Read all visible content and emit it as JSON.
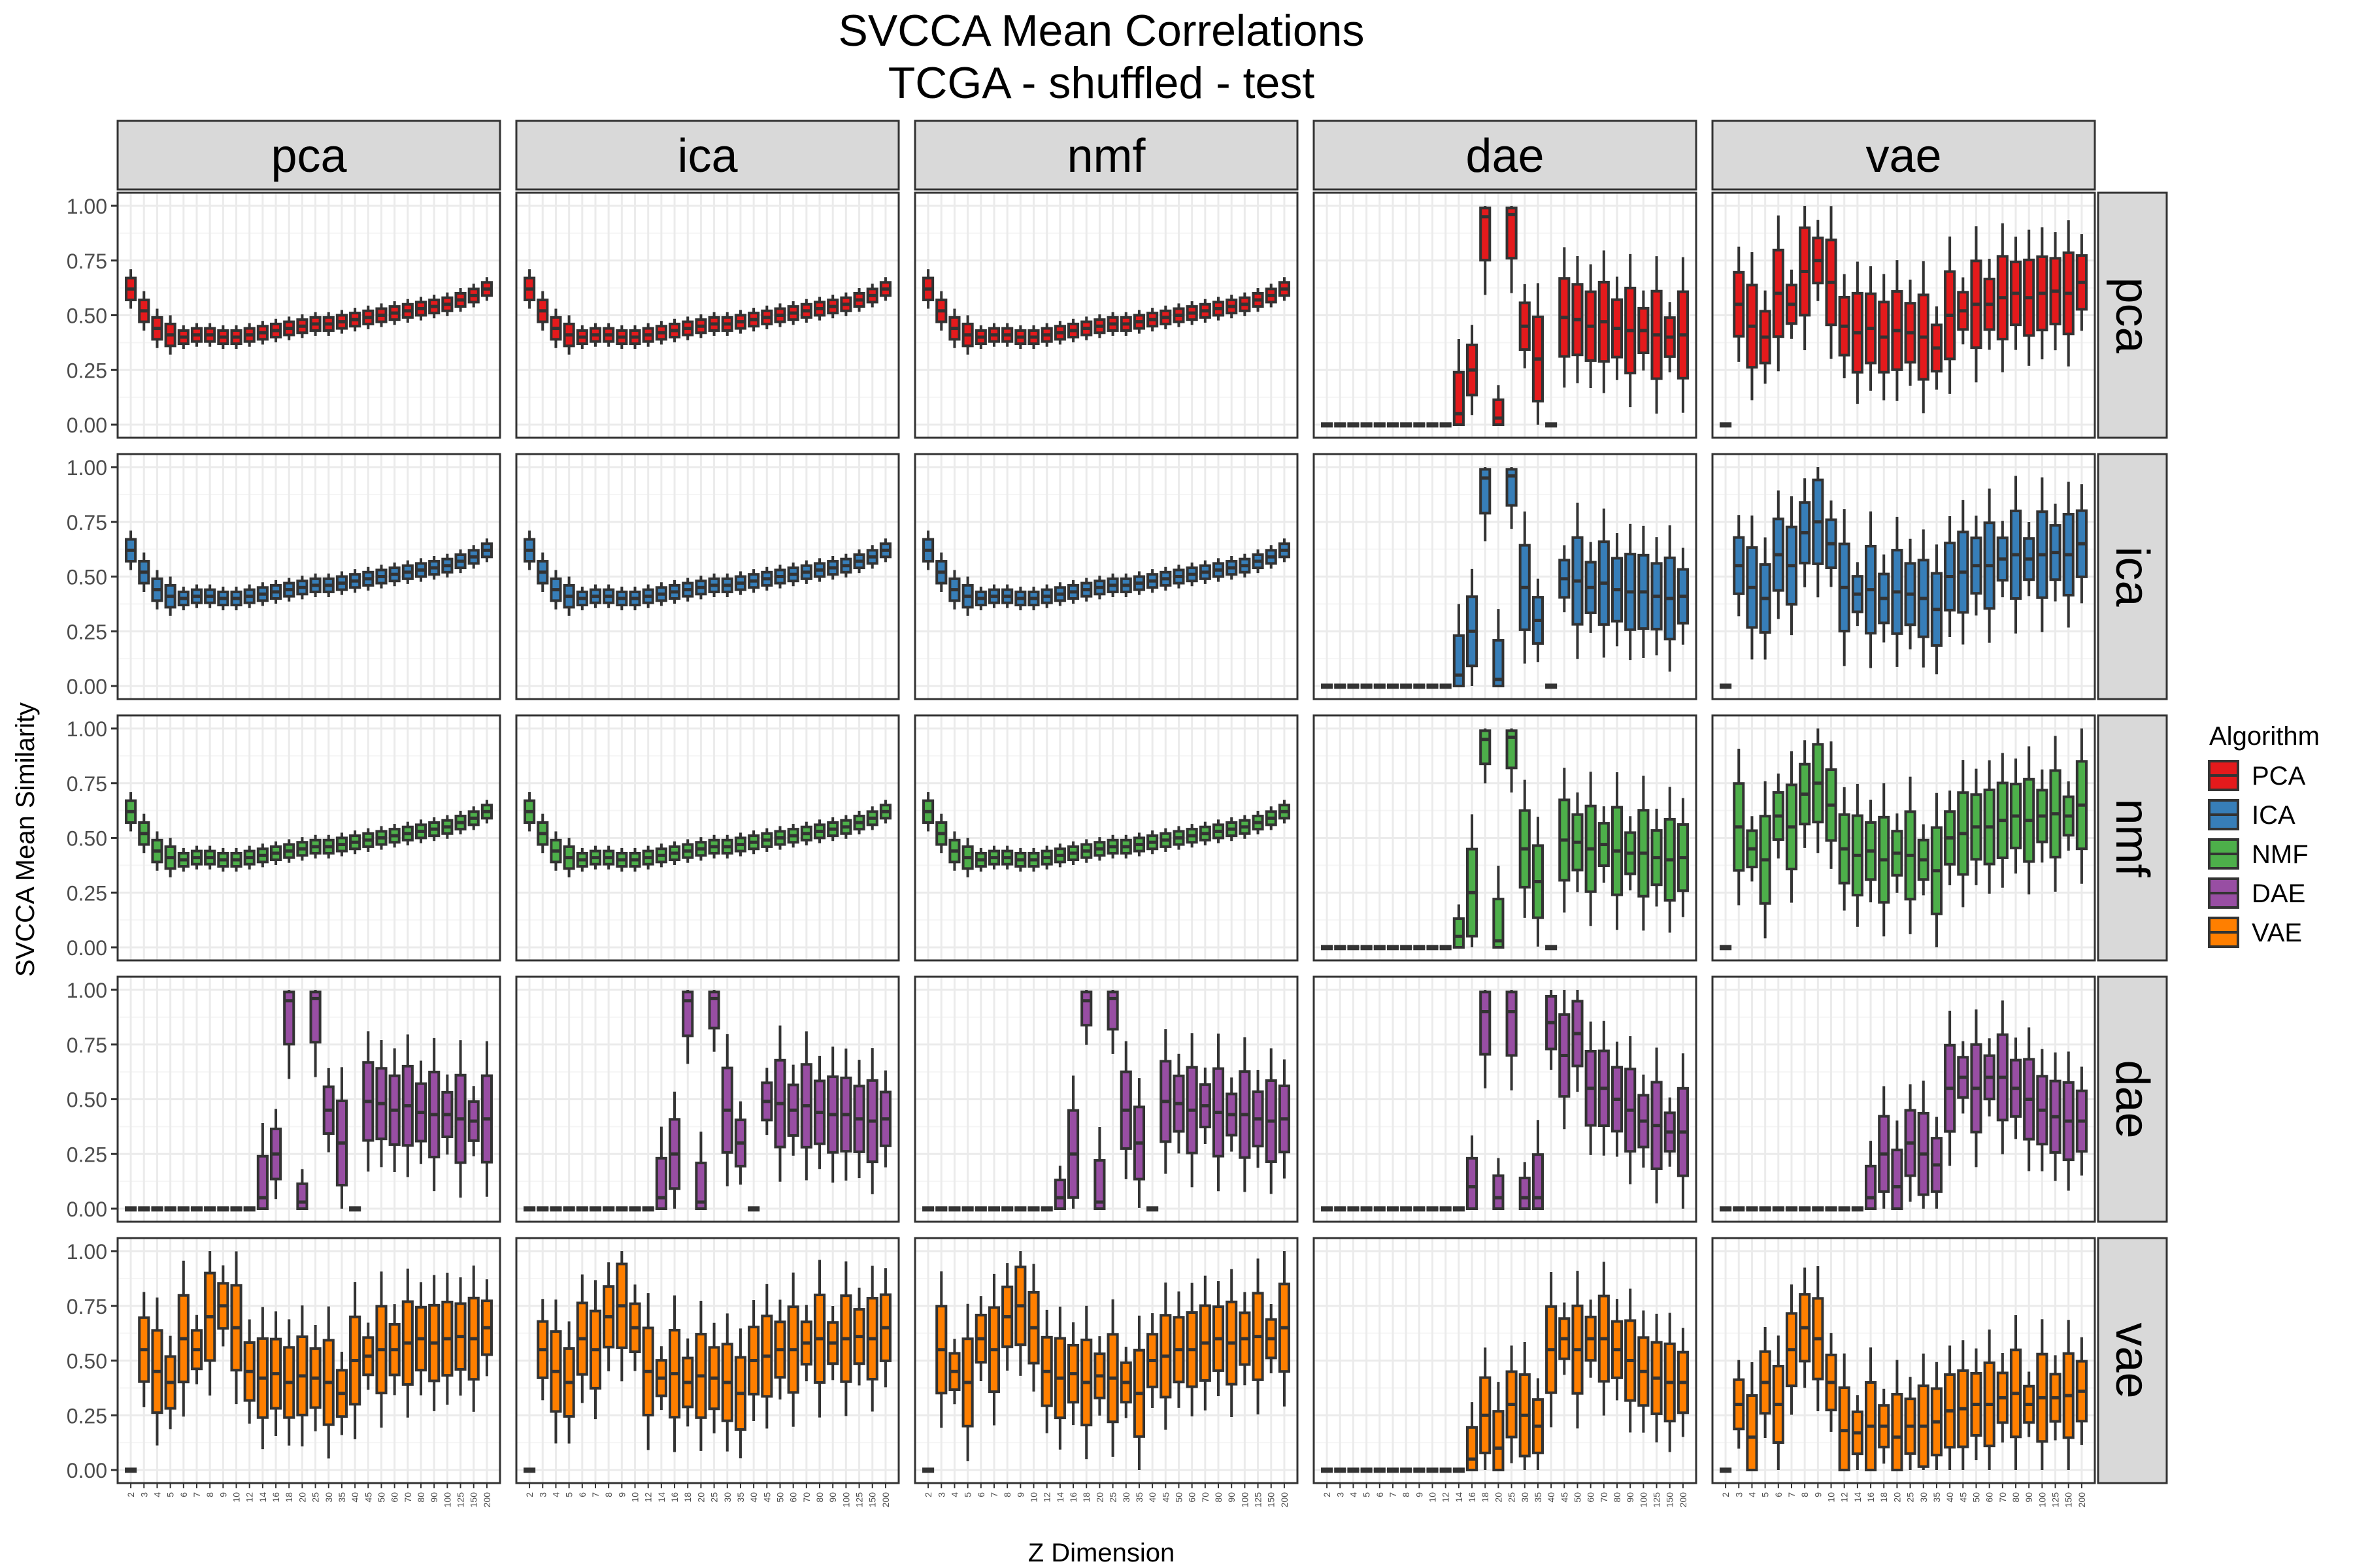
{
  "chart_data": {
    "type": "boxplot",
    "title": "SVCCA Mean Correlations",
    "subtitle": "TCGA - shuffled - test",
    "xlabel": "Z Dimension",
    "ylabel": "SVCCA Mean Similarity",
    "ylim": [
      0,
      1
    ],
    "y_ticks": [
      "0.00",
      "0.25",
      "0.50",
      "0.75",
      "1.00"
    ],
    "x_categories": [
      "2",
      "3",
      "4",
      "5",
      "6",
      "7",
      "8",
      "9",
      "10",
      "12",
      "14",
      "16",
      "18",
      "20",
      "25",
      "30",
      "35",
      "40",
      "45",
      "50",
      "60",
      "70",
      "80",
      "90",
      "100",
      "125",
      "150",
      "200"
    ],
    "column_facets": [
      "pca",
      "ica",
      "nmf",
      "dae",
      "vae"
    ],
    "row_facets": [
      "pca",
      "ica",
      "nmf",
      "dae",
      "vae"
    ],
    "legend": {
      "title": "Algorithm",
      "position": "right",
      "items": [
        {
          "label": "PCA",
          "color": "#e41a1c"
        },
        {
          "label": "ICA",
          "color": "#377eb8"
        },
        {
          "label": "NMF",
          "color": "#4daf4a"
        },
        {
          "label": "DAE",
          "color": "#984ea3"
        },
        {
          "label": "VAE",
          "color": "#ff7f00"
        }
      ]
    },
    "grid": true,
    "medians": {
      "linear": [
        0.62,
        0.52,
        0.44,
        0.41,
        0.4,
        0.41,
        0.41,
        0.4,
        0.4,
        0.41,
        0.42,
        0.43,
        0.44,
        0.45,
        0.46,
        0.46,
        0.47,
        0.48,
        0.49,
        0.5,
        0.51,
        0.52,
        0.53,
        0.54,
        0.55,
        0.57,
        0.59,
        0.62
      ],
      "dae": [
        0,
        0,
        0,
        0,
        0,
        0,
        0,
        0,
        0,
        0,
        0.05,
        0.25,
        0.95,
        0.03,
        0.96,
        0.45,
        0.3,
        0.0,
        0.49,
        0.48,
        0.45,
        0.47,
        0.44,
        0.43,
        0.43,
        0.41,
        0.4,
        0.41
      ],
      "vae": [
        0,
        0.55,
        0.45,
        0.4,
        0.6,
        0.55,
        0.7,
        0.75,
        0.65,
        0.45,
        0.42,
        0.44,
        0.4,
        0.43,
        0.42,
        0.4,
        0.35,
        0.5,
        0.52,
        0.55,
        0.55,
        0.58,
        0.6,
        0.58,
        0.6,
        0.61,
        0.6,
        0.65
      ],
      "dae_dae": [
        0,
        0,
        0,
        0,
        0,
        0,
        0,
        0,
        0,
        0,
        0,
        0.1,
        0.9,
        0.05,
        0.9,
        0.05,
        0.05,
        0.85,
        0.7,
        0.8,
        0.55,
        0.55,
        0.5,
        0.45,
        0.4,
        0.38,
        0.35,
        0.35
      ],
      "vae_vae": [
        0,
        0.3,
        0.15,
        0.4,
        0.3,
        0.55,
        0.65,
        0.6,
        0.4,
        0.18,
        0.17,
        0.2,
        0.2,
        0.15,
        0.2,
        0.2,
        0.22,
        0.27,
        0.28,
        0.3,
        0.3,
        0.33,
        0.35,
        0.3,
        0.33,
        0.33,
        0.34,
        0.36
      ],
      "dae_vae": [
        0,
        0,
        0,
        0,
        0,
        0,
        0,
        0,
        0,
        0,
        0,
        0.05,
        0.25,
        0.1,
        0.3,
        0.25,
        0.2,
        0.55,
        0.6,
        0.55,
        0.6,
        0.6,
        0.55,
        0.5,
        0.45,
        0.42,
        0.4,
        0.4
      ]
    }
  }
}
